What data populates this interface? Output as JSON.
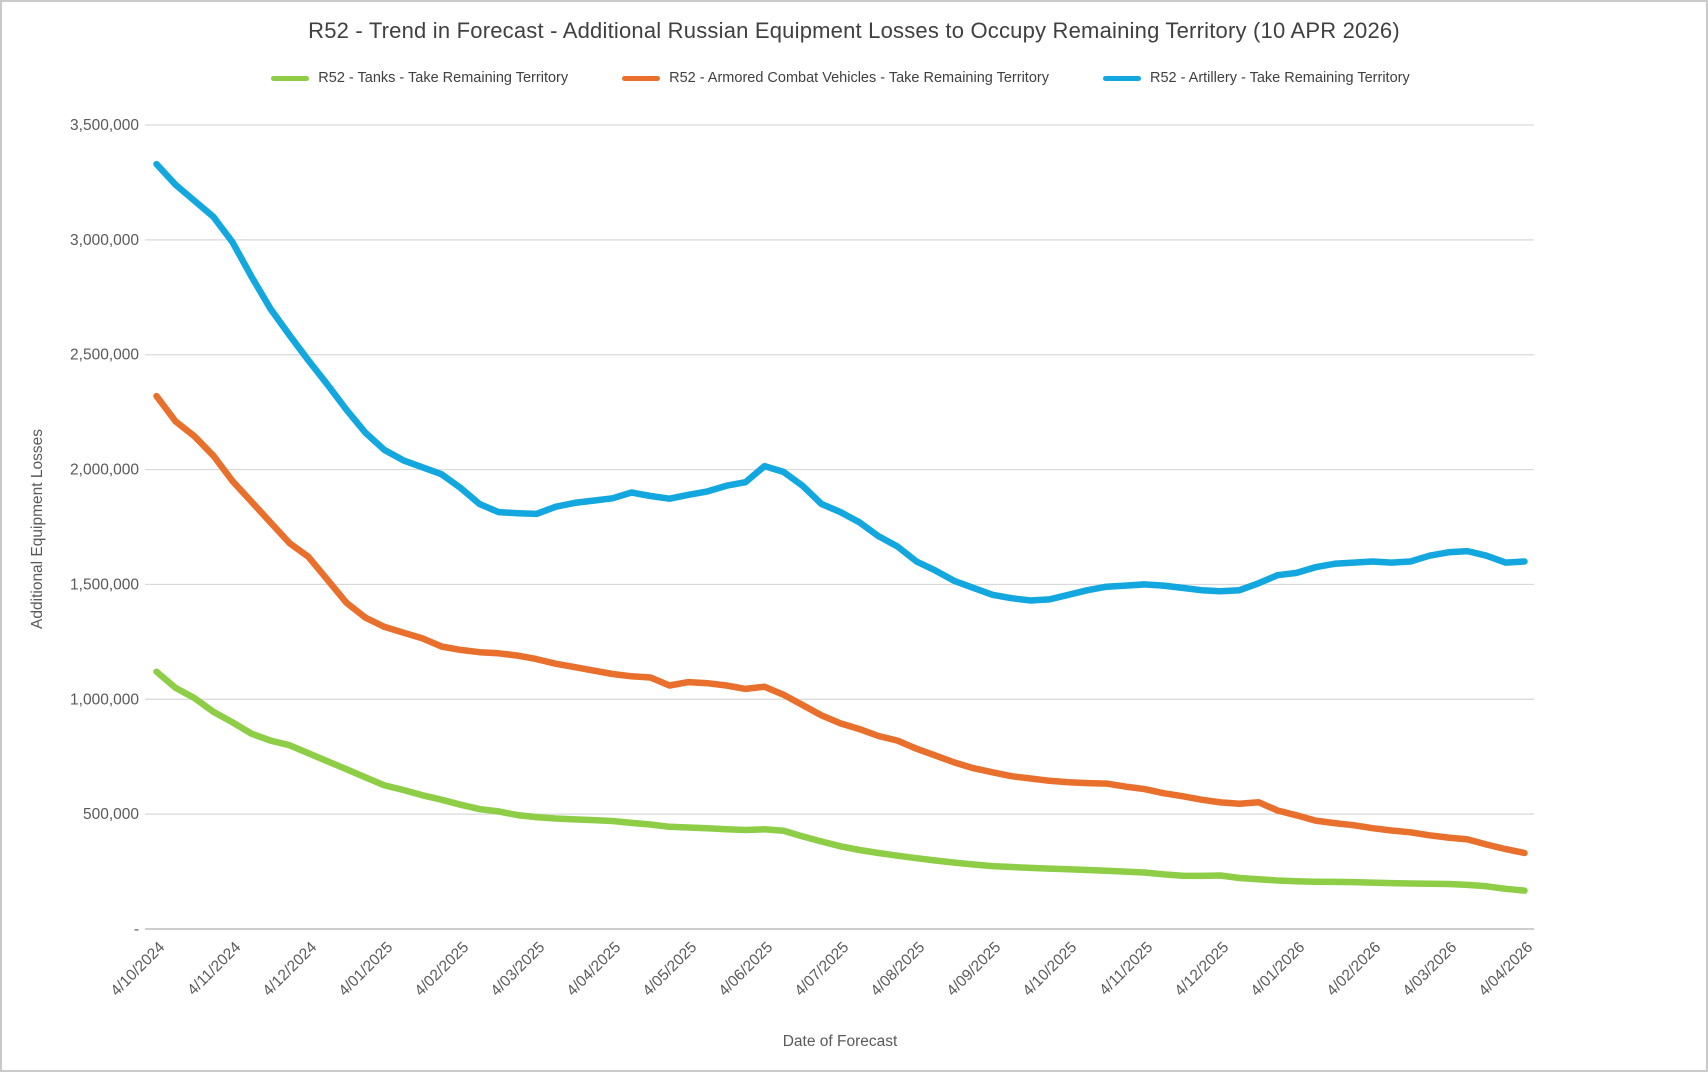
{
  "chart_data": {
    "type": "line",
    "title": "R52 - Trend in Forecast - Additional Russian Equipment Losses to Occupy Remaining Territory (10 APR 2026)",
    "xlabel": "Date of Forecast",
    "ylabel": "Additional Equipment Losses",
    "ylim": [
      0,
      3500000
    ],
    "y_tick_step": 500000,
    "y_zero_tick_label": "-",
    "grid": true,
    "legend_position": "top",
    "x_tick_labels": [
      "4/10/2024",
      "4/11/2024",
      "4/12/2024",
      "4/01/2025",
      "4/02/2025",
      "4/03/2025",
      "4/04/2025",
      "4/05/2025",
      "4/06/2025",
      "4/07/2025",
      "4/08/2025",
      "4/09/2025",
      "4/10/2025",
      "4/11/2025",
      "4/12/2025",
      "4/01/2026",
      "4/02/2026",
      "4/03/2026",
      "4/04/2026"
    ],
    "points_per_x_tick": 4,
    "series": [
      {
        "name": "R52 - Tanks - Take Remaining Territory",
        "color": "#8dce46",
        "values": [
          1120000,
          1050000,
          1005000,
          945000,
          900000,
          850000,
          820000,
          800000,
          765000,
          730000,
          695000,
          660000,
          625000,
          605000,
          582000,
          563000,
          541000,
          522000,
          512000,
          496000,
          487000,
          481000,
          477000,
          474000,
          470000,
          462000,
          455000,
          445000,
          442000,
          439000,
          434000,
          431000,
          434000,
          428000,
          403000,
          381000,
          360000,
          344000,
          331000,
          319000,
          308000,
          298000,
          289000,
          281000,
          274000,
          270000,
          266000,
          263000,
          260000,
          257000,
          254000,
          250000,
          246000,
          238000,
          232000,
          231000,
          233000,
          222000,
          217000,
          211000,
          208000,
          206000,
          205000,
          204000,
          202000,
          200000,
          198000,
          197000,
          196000,
          192000,
          186000,
          175000,
          167000
        ]
      },
      {
        "name": "R52 - Armored Combat Vehicles - Take Remaining Territory",
        "color": "#e8702c",
        "values": [
          2320000,
          2210000,
          2145000,
          2060000,
          1950000,
          1860000,
          1770000,
          1680000,
          1620000,
          1520000,
          1420000,
          1355000,
          1315000,
          1290000,
          1265000,
          1230000,
          1215000,
          1205000,
          1200000,
          1190000,
          1175000,
          1155000,
          1140000,
          1125000,
          1110000,
          1100000,
          1095000,
          1060000,
          1075000,
          1070000,
          1060000,
          1045000,
          1055000,
          1020000,
          975000,
          930000,
          895000,
          870000,
          840000,
          820000,
          785000,
          755000,
          725000,
          700000,
          682000,
          665000,
          655000,
          645000,
          639000,
          635000,
          633000,
          620000,
          609000,
          591000,
          578000,
          563000,
          551000,
          545000,
          552000,
          516000,
          495000,
          472000,
          461000,
          452000,
          439000,
          429000,
          421000,
          408000,
          398000,
          390000,
          368000,
          348000,
          331000
        ]
      },
      {
        "name": "R52 - Artillery - Take Remaining Territory",
        "color": "#12a7de",
        "values": [
          3330000,
          3240000,
          3170000,
          3100000,
          2990000,
          2840000,
          2700000,
          2585000,
          2475000,
          2370000,
          2260000,
          2160000,
          2085000,
          2040000,
          2010000,
          1980000,
          1920000,
          1850000,
          1815000,
          1810000,
          1807000,
          1838000,
          1855000,
          1865000,
          1875000,
          1900000,
          1885000,
          1873000,
          1890000,
          1905000,
          1930000,
          1945000,
          2015000,
          1990000,
          1930000,
          1850000,
          1815000,
          1770000,
          1710000,
          1665000,
          1600000,
          1560000,
          1515000,
          1485000,
          1455000,
          1440000,
          1430000,
          1435000,
          1455000,
          1475000,
          1490000,
          1495000,
          1500000,
          1495000,
          1485000,
          1475000,
          1470000,
          1475000,
          1505000,
          1540000,
          1550000,
          1575000,
          1590000,
          1595000,
          1600000,
          1595000,
          1600000,
          1625000,
          1640000,
          1645000,
          1625000,
          1595000,
          1600000
        ]
      }
    ]
  }
}
